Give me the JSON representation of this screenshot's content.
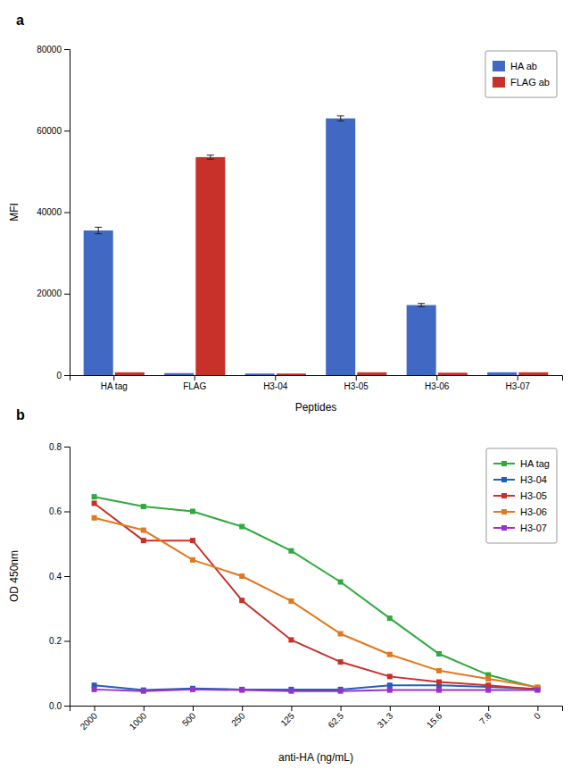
{
  "chart_data": [
    {
      "type": "bar",
      "title": "a",
      "xlabel": "Peptides",
      "ylabel": "MFI",
      "categories": [
        "HA tag",
        "FLAG",
        "H3-04",
        "H3-05",
        "H3-06",
        "H3-07"
      ],
      "series": [
        {
          "name": "HA ab",
          "color": "#4169C4",
          "values": [
            35500,
            500,
            400,
            63000,
            17200,
            700
          ],
          "errors": [
            800,
            0,
            0,
            600,
            400,
            0
          ]
        },
        {
          "name": "FLAG ab",
          "color": "#C8302A",
          "values": [
            700,
            53500,
            400,
            700,
            600,
            700
          ],
          "errors": [
            0,
            500,
            0,
            0,
            0,
            0
          ]
        }
      ],
      "ylim": [
        0,
        80000
      ],
      "yticks": [
        0,
        20000,
        40000,
        60000,
        80000
      ],
      "legend": "upper right",
      "grid": false
    },
    {
      "type": "line",
      "title": "b",
      "xlabel": "anti-HA (ng/mL)",
      "ylabel": "OD 450nm",
      "categories": [
        "2000",
        "1000",
        "500",
        "250",
        "125",
        "62.5",
        "31.3",
        "15.6",
        "7.8",
        "0"
      ],
      "series": [
        {
          "name": "HA tag",
          "color": "#2EAA3E",
          "marker": "square",
          "values": [
            0.645,
            0.615,
            0.6,
            0.553,
            0.478,
            0.382,
            0.27,
            0.16,
            0.095,
            0.055
          ]
        },
        {
          "name": "H3-04",
          "color": "#2060B8",
          "marker": "square",
          "values": [
            0.063,
            0.048,
            0.053,
            0.05,
            0.05,
            0.05,
            0.063,
            0.063,
            0.058,
            0.052
          ]
        },
        {
          "name": "H3-05",
          "color": "#C8302A",
          "marker": "square",
          "values": [
            0.625,
            0.51,
            0.51,
            0.325,
            0.203,
            0.135,
            0.09,
            0.073,
            0.063,
            0.05
          ]
        },
        {
          "name": "H3-06",
          "color": "#E07820",
          "marker": "square",
          "values": [
            0.58,
            0.542,
            0.45,
            0.4,
            0.323,
            0.222,
            0.158,
            0.108,
            0.083,
            0.057
          ]
        },
        {
          "name": "H3-07",
          "color": "#9932CC",
          "marker": "square",
          "values": [
            0.05,
            0.045,
            0.05,
            0.048,
            0.045,
            0.045,
            0.048,
            0.048,
            0.048,
            0.048
          ]
        }
      ],
      "ylim": [
        0.0,
        0.8
      ],
      "yticks": [
        {
          "value": 0.0,
          "label": "0.0"
        },
        0.2,
        0.4,
        0.6,
        0.8
      ],
      "legend": "upper right",
      "grid": false
    }
  ]
}
